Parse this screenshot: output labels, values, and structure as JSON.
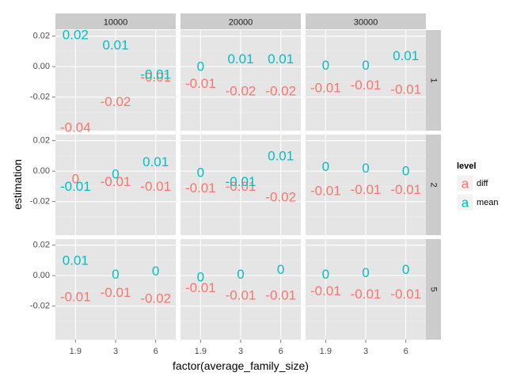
{
  "chart_data": {
    "type": "scatter",
    "subtype": "text-label faceted grid",
    "xlabel": "factor(average_family_size)",
    "ylabel": "estimation",
    "x_categories": [
      "1.9",
      "3",
      "6"
    ],
    "y_ticks": [
      -0.02,
      0.0,
      0.02
    ],
    "y_tick_labels": [
      "-0.02",
      "0.00",
      "0.02"
    ],
    "ylim": [
      -0.042,
      0.024
    ],
    "grid": true,
    "col_facets": [
      "10000",
      "20000",
      "30000"
    ],
    "row_facets": [
      "1",
      "2",
      "5"
    ],
    "legend": {
      "title": "level",
      "position": "right",
      "key_glyph": "a",
      "entries": [
        {
          "name": "diff",
          "color": "#F8766D"
        },
        {
          "name": "mean",
          "color": "#00BFC4"
        }
      ]
    },
    "panels": [
      {
        "row": "1",
        "col": "10000",
        "diff": {
          "values": [
            -0.04,
            -0.023,
            -0.007
          ],
          "labels": [
            "-0.04",
            "-0.02",
            "-0.01"
          ]
        },
        "mean": {
          "values": [
            0.021,
            0.014,
            -0.005
          ],
          "labels": [
            "0.02",
            "0.01",
            "-0.01"
          ]
        }
      },
      {
        "row": "1",
        "col": "20000",
        "diff": {
          "values": [
            -0.011,
            -0.016,
            -0.016
          ],
          "labels": [
            "-0.01",
            "-0.02",
            "-0.02"
          ]
        },
        "mean": {
          "values": [
            0.0,
            0.005,
            0.005
          ],
          "labels": [
            "0",
            "0.01",
            "0.01"
          ]
        }
      },
      {
        "row": "1",
        "col": "30000",
        "diff": {
          "values": [
            -0.014,
            -0.012,
            -0.015
          ],
          "labels": [
            "-0.01",
            "-0.01",
            "-0.01"
          ]
        },
        "mean": {
          "values": [
            0.001,
            0.001,
            0.007
          ],
          "labels": [
            "0",
            "0",
            "0.01"
          ]
        }
      },
      {
        "row": "2",
        "col": "10000",
        "diff": {
          "values": [
            -0.005,
            -0.007,
            -0.01
          ],
          "labels": [
            "0",
            "-0.01",
            "-0.01"
          ]
        },
        "mean": {
          "values": [
            -0.01,
            -0.002,
            0.006
          ],
          "labels": [
            "-0.01",
            "0",
            "0.01"
          ]
        }
      },
      {
        "row": "2",
        "col": "20000",
        "diff": {
          "values": [
            -0.011,
            -0.01,
            -0.017
          ],
          "labels": [
            "-0.01",
            "-0.01",
            "-0.02"
          ]
        },
        "mean": {
          "values": [
            -0.001,
            -0.007,
            0.01
          ],
          "labels": [
            "0",
            "-0.01",
            "0.01"
          ]
        }
      },
      {
        "row": "2",
        "col": "30000",
        "diff": {
          "values": [
            -0.013,
            -0.012,
            -0.012
          ],
          "labels": [
            "-0.01",
            "-0.01",
            "-0.01"
          ]
        },
        "mean": {
          "values": [
            0.003,
            0.002,
            0.0
          ],
          "labels": [
            "0",
            "0",
            "0"
          ]
        }
      },
      {
        "row": "5",
        "col": "10000",
        "diff": {
          "values": [
            -0.014,
            -0.011,
            -0.015
          ],
          "labels": [
            "-0.01",
            "-0.01",
            "-0.02"
          ]
        },
        "mean": {
          "values": [
            0.01,
            0.001,
            0.003
          ],
          "labels": [
            "0.01",
            "0",
            "0"
          ]
        }
      },
      {
        "row": "5",
        "col": "20000",
        "diff": {
          "values": [
            -0.008,
            -0.013,
            -0.013
          ],
          "labels": [
            "-0.01",
            "-0.01",
            "-0.01"
          ]
        },
        "mean": {
          "values": [
            -0.001,
            0.001,
            0.004
          ],
          "labels": [
            "0",
            "0",
            "0"
          ]
        }
      },
      {
        "row": "5",
        "col": "30000",
        "diff": {
          "values": [
            -0.01,
            -0.012,
            -0.012
          ],
          "labels": [
            "-0.01",
            "-0.01",
            "-0.01"
          ]
        },
        "mean": {
          "values": [
            0.001,
            0.002,
            0.004
          ],
          "labels": [
            "0",
            "0",
            "0"
          ]
        }
      }
    ]
  },
  "colors": {
    "panel_background": "#E5E5E5",
    "strip_background": "#CCCCCC",
    "grid_major": "#FFFFFF",
    "grid_minor": "#F2F2F2",
    "tick_text": "#4D4D4D"
  }
}
